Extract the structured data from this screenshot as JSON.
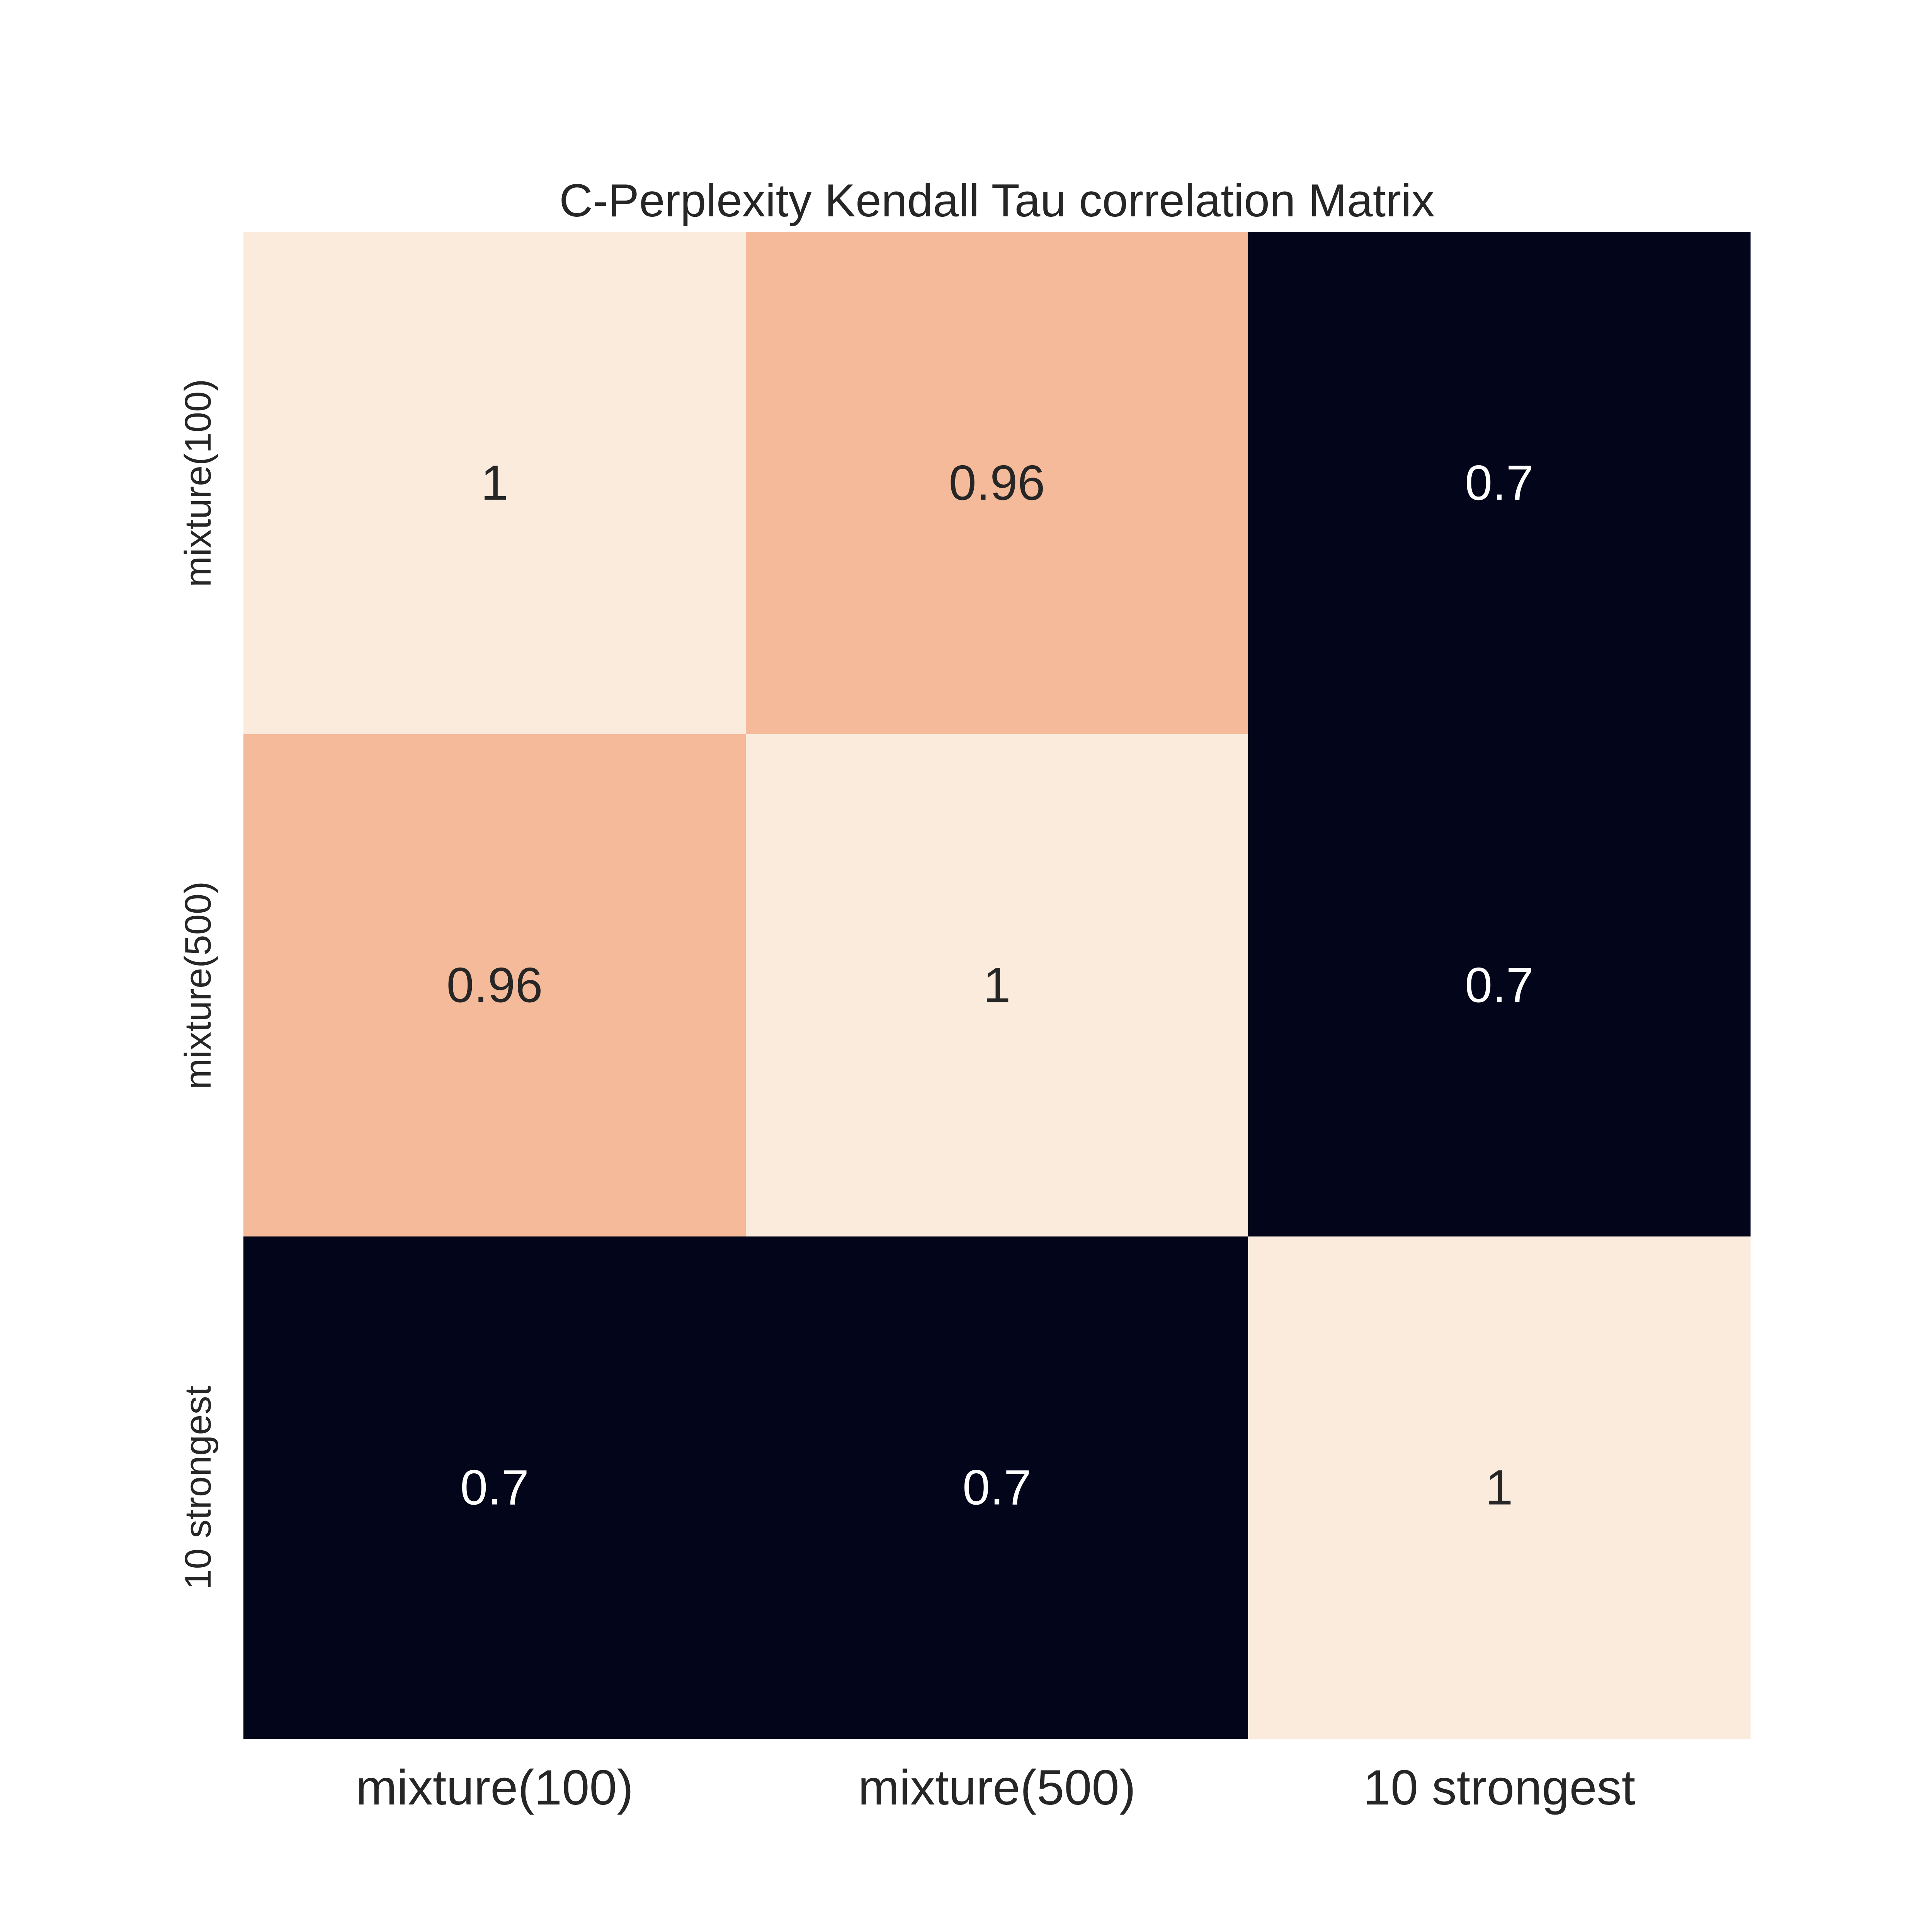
{
  "chart_data": {
    "type": "heatmap",
    "title": "C-Perplexity Kendall Tau correlation Matrix",
    "xlabel": "",
    "ylabel": "",
    "x_categories": [
      "mixture(100)",
      "mixture(500)",
      "10 strongest"
    ],
    "y_categories": [
      "mixture(100)",
      "mixture(500)",
      "10 strongest"
    ],
    "values": [
      [
        1,
        0.96,
        0.7
      ],
      [
        0.96,
        1,
        0.7
      ],
      [
        0.7,
        0.7,
        1
      ]
    ],
    "value_labels": [
      [
        "1",
        "0.96",
        "0.7"
      ],
      [
        "0.96",
        "1",
        "0.7"
      ],
      [
        "0.7",
        "0.7",
        "1"
      ]
    ],
    "colorbar": false,
    "colormap": "rocket",
    "colors": {
      "low": "#03051a",
      "mid": "#f5bb9a",
      "high": "#faebdd",
      "text_dark": "#262626",
      "text_light": "#ffffff"
    }
  }
}
